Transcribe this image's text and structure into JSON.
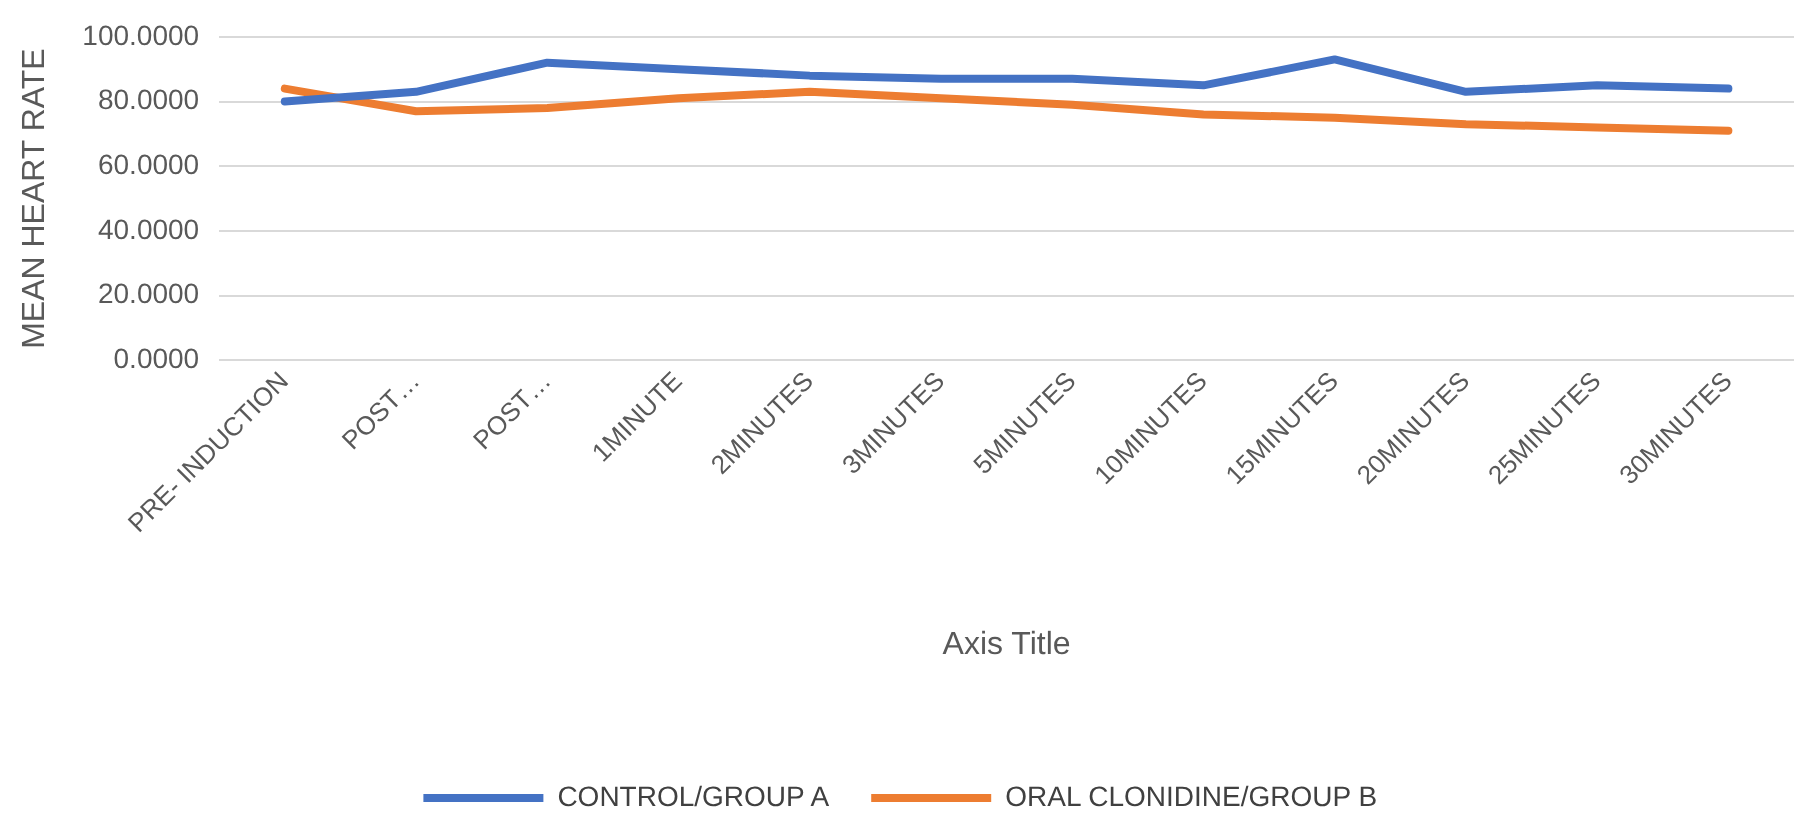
{
  "chart_data": {
    "type": "line",
    "xlabel": "Axis Title",
    "ylabel": "MEAN HEART RATE",
    "categories": [
      "PRE- INDUCTION",
      "POST…",
      "POST…",
      "1MINUTE",
      "2MINUTES",
      "3MINUTES",
      "5MINUTES",
      "10MINUTES",
      "15MINUTES",
      "20MINUTES",
      "25MINUTES",
      "30MINUTES"
    ],
    "series": [
      {
        "name": "CONTROL/GROUP A",
        "color": "#4472c4",
        "values": [
          80,
          83,
          92,
          90,
          88,
          87,
          87,
          85,
          93,
          83,
          85,
          84
        ]
      },
      {
        "name": "ORAL CLONIDINE/GROUP B",
        "color": "#ed7d31",
        "values": [
          84,
          77,
          78,
          81,
          83,
          81,
          79,
          76,
          75,
          73,
          72,
          71
        ]
      }
    ],
    "ylim": [
      0,
      100
    ],
    "yticks": [
      {
        "value": 0,
        "label": "0.0000"
      },
      {
        "value": 20,
        "label": "20.0000"
      },
      {
        "value": 40,
        "label": "40.0000"
      },
      {
        "value": 60,
        "label": "60.0000"
      },
      {
        "value": 80,
        "label": "80.0000"
      },
      {
        "value": 100,
        "label": "100.0000"
      }
    ],
    "grid": "y",
    "legend": "bottom",
    "marker": "none",
    "line_style": "solid"
  }
}
